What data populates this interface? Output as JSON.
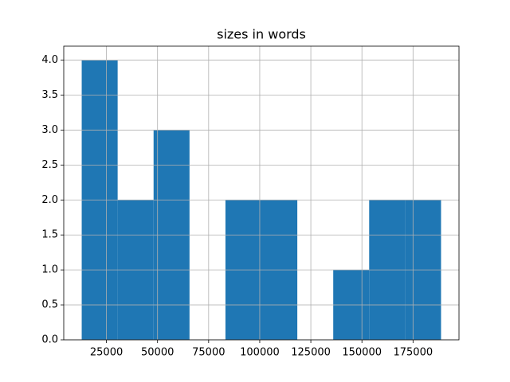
{
  "chart_data": {
    "type": "histogram",
    "title": "sizes in words",
    "bins": [
      12900,
      30480,
      48060,
      65640,
      83220,
      100800,
      118380,
      135960,
      153540,
      171120,
      188700
    ],
    "values": [
      4,
      2,
      3,
      0,
      2,
      2,
      0,
      1,
      2,
      2
    ],
    "color": "#1f77b4",
    "xlim": [
      4110,
      197490
    ],
    "ylim": [
      0,
      4.2
    ],
    "xticks": [
      25000,
      50000,
      75000,
      100000,
      125000,
      150000,
      175000
    ],
    "yticks": [
      {
        "value": 0,
        "label": "0.0"
      },
      {
        "value": 0.5,
        "label": "0.5"
      },
      {
        "value": 1,
        "label": "1.0"
      },
      {
        "value": 1.5,
        "label": "1.5"
      },
      {
        "value": 2,
        "label": "2.0"
      },
      {
        "value": 2.5,
        "label": "2.5"
      },
      {
        "value": 3,
        "label": "3.0"
      },
      {
        "value": 3.5,
        "label": "3.5"
      },
      {
        "value": 4,
        "label": "4.0"
      }
    ],
    "grid": true
  }
}
